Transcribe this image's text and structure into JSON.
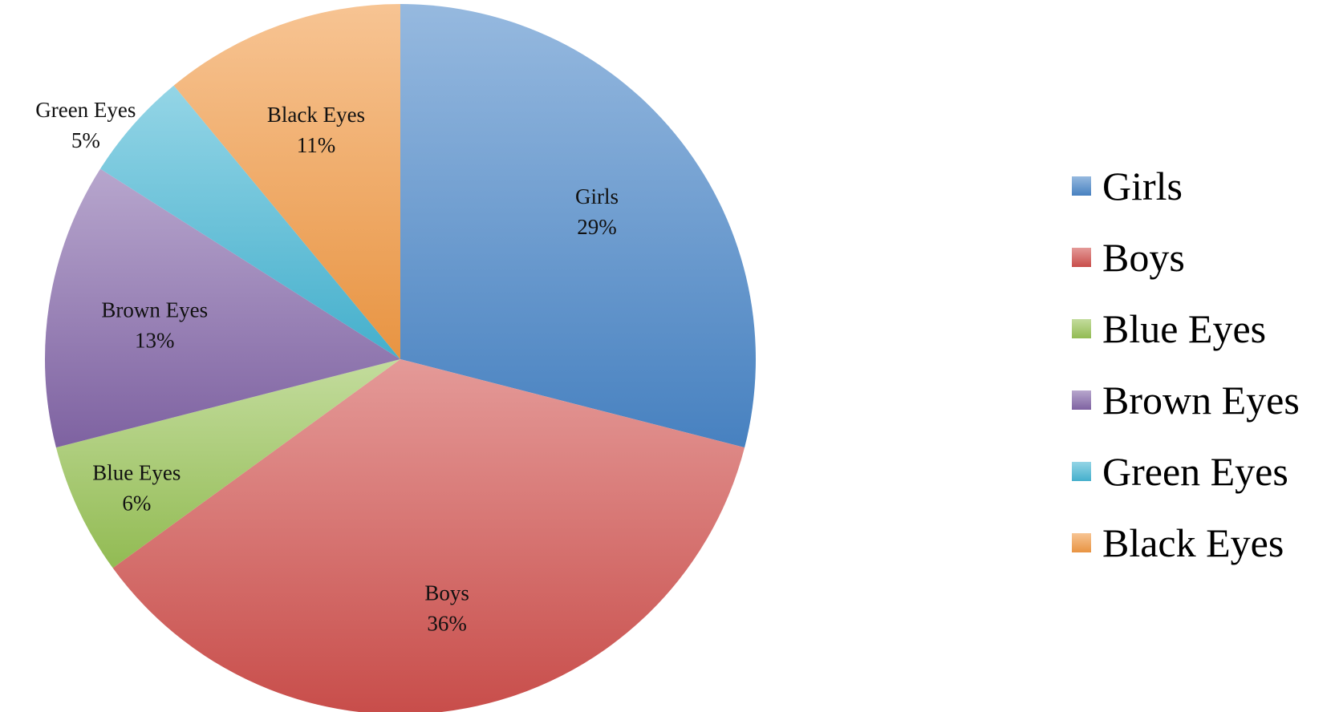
{
  "chart_data": {
    "type": "pie",
    "title": "",
    "slices": [
      {
        "name": "Girls",
        "value": 29,
        "label": "29%",
        "color": "#4a86c8"
      },
      {
        "name": "Boys",
        "value": 36,
        "label": "36%",
        "color": "#d0504d"
      },
      {
        "name": "Blue Eyes",
        "value": 6,
        "label": "6%",
        "color": "#98c356"
      },
      {
        "name": "Brown Eyes",
        "value": 13,
        "label": "13%",
        "color": "#8366a8"
      },
      {
        "name": "Green Eyes",
        "value": 5,
        "label": "5%",
        "color": "#47b6d4"
      },
      {
        "name": "Black Eyes",
        "value": 11,
        "label": "11%",
        "color": "#f29a45"
      }
    ],
    "legend": {
      "position": "right",
      "entries": [
        "Girls",
        "Boys",
        "Blue Eyes",
        "Brown Eyes",
        "Green Eyes",
        "Black Eyes"
      ]
    }
  }
}
